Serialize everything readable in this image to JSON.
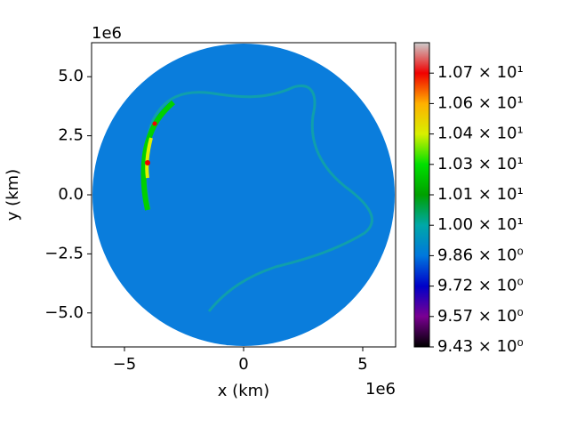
{
  "chart_data": {
    "type": "field",
    "x_label": "x (km)",
    "y_label": "y (km)",
    "x_offset_label": "1e6",
    "y_offset_label": "1e6",
    "xlim": [
      -6.38,
      6.38
    ],
    "ylim": [
      -6.44,
      6.44
    ],
    "xticks": [
      {
        "value": -5,
        "label": "−5"
      },
      0,
      5
    ],
    "yticks": [
      {
        "value": -5,
        "label": "−5.0"
      },
      {
        "value": -2.5,
        "label": "−2.5"
      },
      {
        "value": 0,
        "label": "0.0"
      },
      {
        "value": 2.5,
        "label": "2.5"
      },
      {
        "value": 5,
        "label": "5.0"
      }
    ],
    "colorbar_lim": [
      9.43,
      10.86
    ],
    "colorbar_ticks": [
      {
        "value": 9.43,
        "label": "9.43 × 10⁰"
      },
      {
        "value": 9.573,
        "label": "9.57 × 10⁰"
      },
      {
        "value": 9.716,
        "label": "9.72 × 10⁰"
      },
      {
        "value": 9.859,
        "label": "9.86 × 10⁰"
      },
      {
        "value": 10.002,
        "label": "1.00 × 10¹"
      },
      {
        "value": 10.145,
        "label": "1.01 × 10¹"
      },
      {
        "value": 10.288,
        "label": "1.03 × 10¹"
      },
      {
        "value": 10.431,
        "label": "1.04 × 10¹"
      },
      {
        "value": 10.574,
        "label": "1.06 × 10¹"
      },
      {
        "value": 10.717,
        "label": "1.07 × 10¹"
      }
    ],
    "colormap": [
      "#000000",
      "#7a0092",
      "#0000c8",
      "#0077dd",
      "#00a8a8",
      "#00a000",
      "#00e000",
      "#d8f000",
      "#ffb000",
      "#f00000",
      "#cccccc"
    ]
  }
}
